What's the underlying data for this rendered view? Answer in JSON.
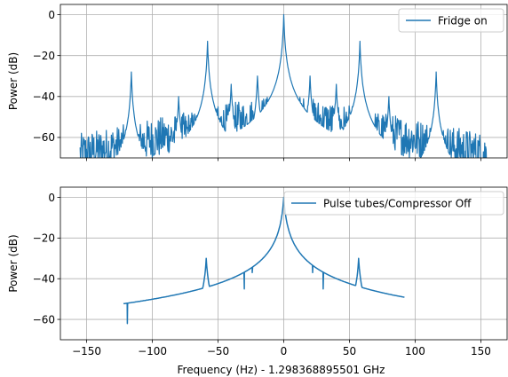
{
  "colors": {
    "series": "#1f77b4"
  },
  "chart_data": [
    {
      "type": "line",
      "xlabel": "",
      "ylabel": "Power (dB)",
      "xlim": [
        -170,
        170
      ],
      "ylim": [
        -70,
        5
      ],
      "xticks": [
        -150,
        -100,
        -50,
        0,
        50,
        100,
        150
      ],
      "yticks": [
        0,
        -20,
        -40,
        -60
      ],
      "x_tick_labels_visible": false,
      "grid": true,
      "legend_placement": "top-right",
      "series": [
        {
          "name": "Fridge on",
          "noise": {
            "x_range": [
              -155,
              155
            ],
            "floor_center": -60,
            "floor_edge": -68,
            "floor_mid": -48,
            "jitter": 10
          },
          "peaks": [
            {
              "x": 0,
              "y": 0,
              "width": 0.6
            },
            {
              "x": -58,
              "y": -13,
              "width": 0.6
            },
            {
              "x": 58,
              "y": -13,
              "width": 0.6
            },
            {
              "x": -116,
              "y": -28,
              "width": 0.6
            },
            {
              "x": 116,
              "y": -28,
              "width": 0.6
            },
            {
              "x": -20,
              "y": -30,
              "width": 0.8
            },
            {
              "x": 20,
              "y": -30,
              "width": 0.8
            },
            {
              "x": -40,
              "y": -34,
              "width": 0.8
            },
            {
              "x": 40,
              "y": -34,
              "width": 0.8
            },
            {
              "x": -80,
              "y": -40,
              "width": 0.8
            },
            {
              "x": 80,
              "y": -40,
              "width": 0.8
            }
          ]
        }
      ]
    },
    {
      "type": "line",
      "xlabel": "Frequency (Hz) - 1.298368895501 GHz",
      "ylabel": "Power (dB)",
      "xlim": [
        -170,
        170
      ],
      "ylim": [
        -70,
        5
      ],
      "xticks": [
        -150,
        -100,
        -50,
        0,
        50,
        100,
        150
      ],
      "yticks": [
        0,
        -20,
        -40,
        -60
      ],
      "x_tick_labels_visible": true,
      "grid": true,
      "legend_placement": "top-right",
      "series": [
        {
          "name": "Pulse tubes/Compressor Off",
          "noise": {
            "x_range": [
              -122,
              92
            ],
            "floor_center": -66,
            "floor_edge": -70,
            "floor_mid": -62,
            "jitter": 4
          },
          "peaks": [
            {
              "x": 0,
              "y": 0,
              "width": 1.2
            },
            {
              "x": -59,
              "y": -30,
              "width": 1.0
            },
            {
              "x": 57,
              "y": -30,
              "width": 1.0
            },
            {
              "x": -24,
              "y": -37,
              "width": 1.5
            },
            {
              "x": 22,
              "y": -37,
              "width": 1.5
            },
            {
              "x": -30,
              "y": -45,
              "width": 1.5
            },
            {
              "x": 30,
              "y": -45,
              "width": 1.5
            },
            {
              "x": -119,
              "y": -62,
              "width": 0.8
            }
          ]
        }
      ]
    }
  ]
}
